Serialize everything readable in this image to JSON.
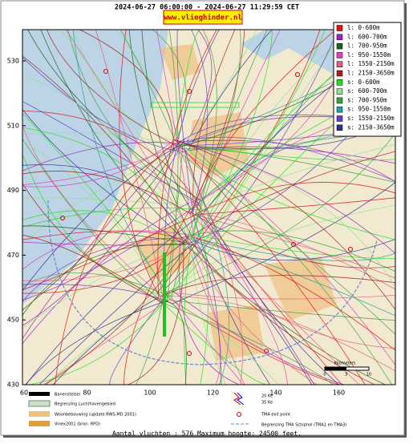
{
  "header": {
    "period": "2024-06-27 06:00:00 - 2024-06-27 11:29:59 CET",
    "site": "www.vlieghinder.nl"
  },
  "legend": [
    {
      "label": "l: 0-600m",
      "color": "#e01010"
    },
    {
      "label": "l: 600-700m",
      "color": "#a020c0"
    },
    {
      "label": "l: 700-950m",
      "color": "#206020"
    },
    {
      "label": "l: 950-1550m",
      "color": "#e040c0"
    },
    {
      "label": "l: 1550-2150m",
      "color": "#e06080"
    },
    {
      "label": "l: 2150-3650m",
      "color": "#a02020"
    },
    {
      "label": "s: 0-600m",
      "color": "#20e020"
    },
    {
      "label": "s: 600-700m",
      "color": "#90e090"
    },
    {
      "label": "s: 700-950m",
      "color": "#40a040"
    },
    {
      "label": "s: 950-1550m",
      "color": "#20a0a0"
    },
    {
      "label": "s: 1550-2150m",
      "color": "#6040c0"
    },
    {
      "label": "s: 2150-3650m",
      "color": "#303090"
    }
  ],
  "axes": {
    "y_labels": [
      "530",
      "510",
      "490",
      "470",
      "450",
      "430"
    ],
    "x_labels": [
      "60",
      "80",
      "100",
      "120",
      "140",
      "160"
    ]
  },
  "map_legend": {
    "runways": "Banenstelsel",
    "airport_boundary": "Begrenzing Luchthavengebied",
    "housing": "Woonbebouwing (update RWS-MD 2001)",
    "vinex": "Vinex2001 (bron: RPD)",
    "contour_20": "20 Ke",
    "contour_35": "35 Ke",
    "exit_point": "TMA exit point",
    "tma_boundary": "Begrenzing TMA Schiphol  (TMA1 en TMA3)"
  },
  "scale": {
    "title": "Kilometers",
    "labels": [
      "0",
      "5",
      "10"
    ]
  },
  "footer": "Aantal vluchten : 576 Maximum hoogte: 24500 feet."
}
